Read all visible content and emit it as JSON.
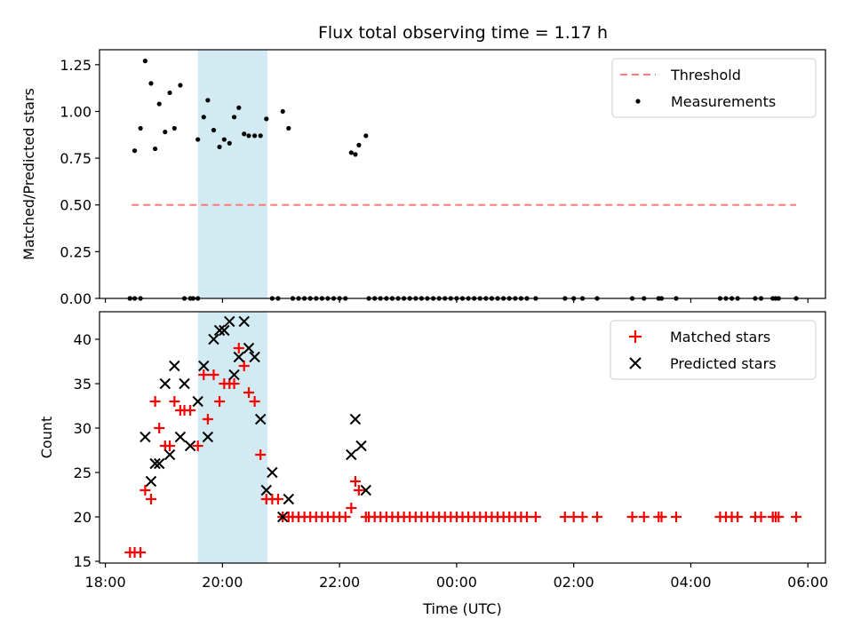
{
  "chart_data": [
    {
      "type": "scatter",
      "title": "Flux total observing time = 1.17 h",
      "xlabel": "",
      "ylabel": "Matched/Predicted stars",
      "xlim": [
        -0.1,
        12.3
      ],
      "ylim": [
        0,
        1.33
      ],
      "yticks": [
        0.0,
        0.25,
        0.5,
        0.75,
        1.0,
        1.25
      ],
      "ytick_labels": [
        "0.00",
        "0.25",
        "0.50",
        "0.75",
        "1.00",
        "1.25"
      ],
      "x_unit": "hours since 18:00 UTC",
      "highlight_span": [
        1.58,
        2.77
      ],
      "legend": [
        "Threshold",
        "Measurements"
      ],
      "legend_position": "upper right",
      "threshold": {
        "name": "Threshold",
        "value": 0.5,
        "x": [
          0.45,
          11.8
        ],
        "color": "#ff7b7b"
      },
      "series": [
        {
          "name": "Measurements",
          "color": "#000000",
          "x": [
            0.42,
            0.5,
            0.6,
            0.68,
            0.78,
            0.85,
            0.92,
            1.02,
            1.1,
            1.18,
            1.28,
            1.35,
            1.45,
            1.58,
            1.68,
            1.75,
            1.85,
            1.95,
            2.03,
            2.12,
            2.2,
            2.28,
            2.37,
            2.45,
            2.55,
            2.65,
            2.75,
            3.03,
            3.13,
            4.2,
            4.27,
            4.33,
            4.45
          ],
          "y": [
            0.0,
            0.79,
            0.91,
            1.27,
            1.15,
            0.8,
            1.04,
            0.89,
            1.1,
            0.91,
            1.14,
            0.0,
            0.0,
            0.85,
            0.97,
            1.06,
            0.9,
            0.81,
            0.85,
            0.83,
            0.97,
            1.02,
            0.88,
            0.87,
            0.87,
            0.87,
            0.96,
            1.0,
            0.91,
            0.78,
            0.77,
            0.82,
            0.87
          ],
          "zeros_x": [
            0.42,
            0.5,
            0.6,
            1.5,
            1.58,
            2.85,
            2.95,
            3.2,
            3.3,
            3.4,
            3.5,
            3.6,
            3.7,
            3.8,
            3.9,
            4.0,
            4.1,
            4.5,
            4.6,
            4.7,
            4.8,
            4.9,
            5.0,
            5.1,
            5.2,
            5.3,
            5.4,
            5.5,
            5.6,
            5.7,
            5.8,
            5.9,
            6.0,
            6.1,
            6.2,
            6.3,
            6.4,
            6.5,
            6.6,
            6.7,
            6.8,
            6.9,
            7.0,
            7.1,
            7.2,
            7.35,
            7.85,
            8.0,
            8.15,
            8.4,
            9.0,
            9.2,
            9.45,
            9.5,
            9.75,
            10.5,
            10.6,
            10.7,
            10.8,
            11.1,
            11.2,
            11.4,
            11.45,
            11.5,
            11.8
          ]
        }
      ]
    },
    {
      "type": "scatter",
      "title": "",
      "xlabel": "Time (UTC)",
      "ylabel": "Count",
      "xlim": [
        -0.1,
        12.3
      ],
      "ylim": [
        14.8,
        43.1
      ],
      "yticks": [
        15,
        20,
        25,
        30,
        35,
        40
      ],
      "xticks": [
        0,
        2,
        4,
        6,
        8,
        10,
        12
      ],
      "xtick_labels": [
        "18:00",
        "20:00",
        "22:00",
        "00:00",
        "02:00",
        "04:00",
        "06:00"
      ],
      "x_unit": "hours since 18:00 UTC",
      "highlight_span": [
        1.58,
        2.77
      ],
      "legend": [
        "Matched stars",
        "Predicted stars"
      ],
      "legend_position": "upper right",
      "series": [
        {
          "name": "Matched stars",
          "marker": "+",
          "color": "#ff0000",
          "x": [
            0.42,
            0.5,
            0.6,
            0.68,
            0.78,
            0.85,
            0.92,
            1.02,
            1.1,
            1.18,
            1.28,
            1.35,
            1.45,
            1.58,
            1.68,
            1.75,
            1.85,
            1.95,
            2.03,
            2.12,
            2.2,
            2.28,
            2.37,
            2.45,
            2.55,
            2.65,
            2.75,
            2.85,
            2.95,
            3.03,
            3.13,
            4.2,
            4.27,
            4.33,
            4.45
          ],
          "y": [
            16,
            16,
            16,
            23,
            22,
            33,
            30,
            28,
            28,
            33,
            32,
            32,
            32,
            28,
            36,
            31,
            36,
            33,
            35,
            35,
            35,
            39,
            37,
            34,
            33,
            27,
            22,
            22,
            22,
            20,
            20,
            21,
            24,
            23,
            20
          ],
          "base_x": [
            3.2,
            3.3,
            3.4,
            3.5,
            3.6,
            3.7,
            3.8,
            3.9,
            4.0,
            4.1,
            4.5,
            4.6,
            4.7,
            4.8,
            4.9,
            5.0,
            5.1,
            5.2,
            5.3,
            5.4,
            5.5,
            5.6,
            5.7,
            5.8,
            5.9,
            6.0,
            6.1,
            6.2,
            6.3,
            6.4,
            6.5,
            6.6,
            6.7,
            6.8,
            6.9,
            7.0,
            7.1,
            7.2,
            7.35,
            7.85,
            8.0,
            8.15,
            8.4,
            9.0,
            9.2,
            9.45,
            9.5,
            9.75,
            10.5,
            10.6,
            10.7,
            10.8,
            11.1,
            11.2,
            11.4,
            11.45,
            11.5,
            11.8
          ],
          "base_y": 20
        },
        {
          "name": "Predicted stars",
          "marker": "x",
          "color": "#000000",
          "x": [
            0.68,
            0.78,
            0.85,
            0.92,
            1.02,
            1.1,
            1.18,
            1.28,
            1.35,
            1.45,
            1.58,
            1.68,
            1.75,
            1.85,
            1.95,
            2.03,
            2.12,
            2.2,
            2.28,
            2.37,
            2.45,
            2.55,
            2.65,
            2.75,
            2.85,
            3.03,
            3.13,
            4.2,
            4.27,
            4.37,
            4.45
          ],
          "y": [
            29,
            24,
            26,
            26,
            35,
            27,
            37,
            29,
            35,
            28,
            33,
            37,
            29,
            40,
            41,
            41,
            42,
            36,
            38,
            42,
            39,
            38,
            31,
            23,
            25,
            20,
            22,
            27,
            31,
            28,
            23
          ]
        }
      ]
    }
  ]
}
